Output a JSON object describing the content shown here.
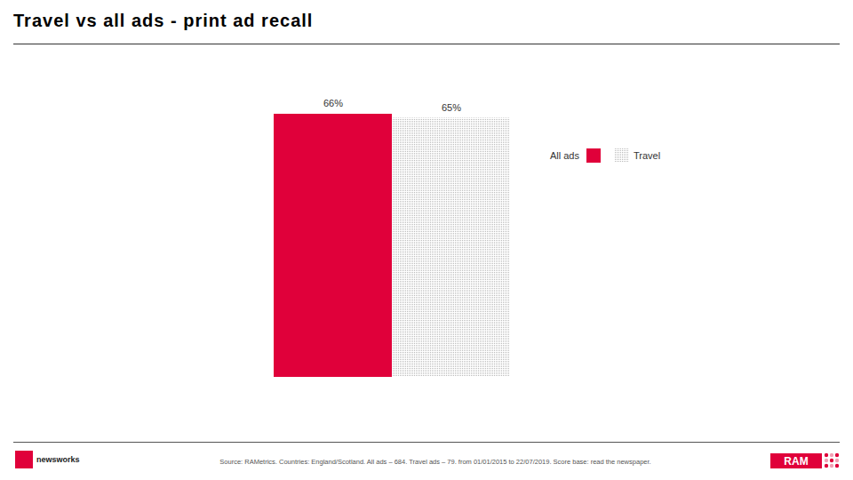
{
  "chart_data": {
    "type": "bar",
    "title": "Travel vs all ads - print ad recall",
    "categories": [
      null
    ],
    "series": [
      {
        "name": "All ads",
        "color": "#e0003a",
        "values": [
          66
        ],
        "value_labels": [
          "66%"
        ]
      },
      {
        "name": "Travel",
        "color": "#b8b8b8",
        "values": [
          65
        ],
        "value_labels": [
          "65%"
        ]
      }
    ],
    "ylim": [
      0,
      66
    ],
    "yticks": [],
    "tick_labels": false,
    "data_labels": true,
    "legend": "top-right",
    "grid": false,
    "source": "Source: RAMetrics. Countries: England/Scotland. All ads – 684. Travel ads – 79. from 01/01/2015 to 22/07/2019. Score base: read the newspaper.",
    "logos": [
      "newsworks",
      "RAM"
    ]
  }
}
